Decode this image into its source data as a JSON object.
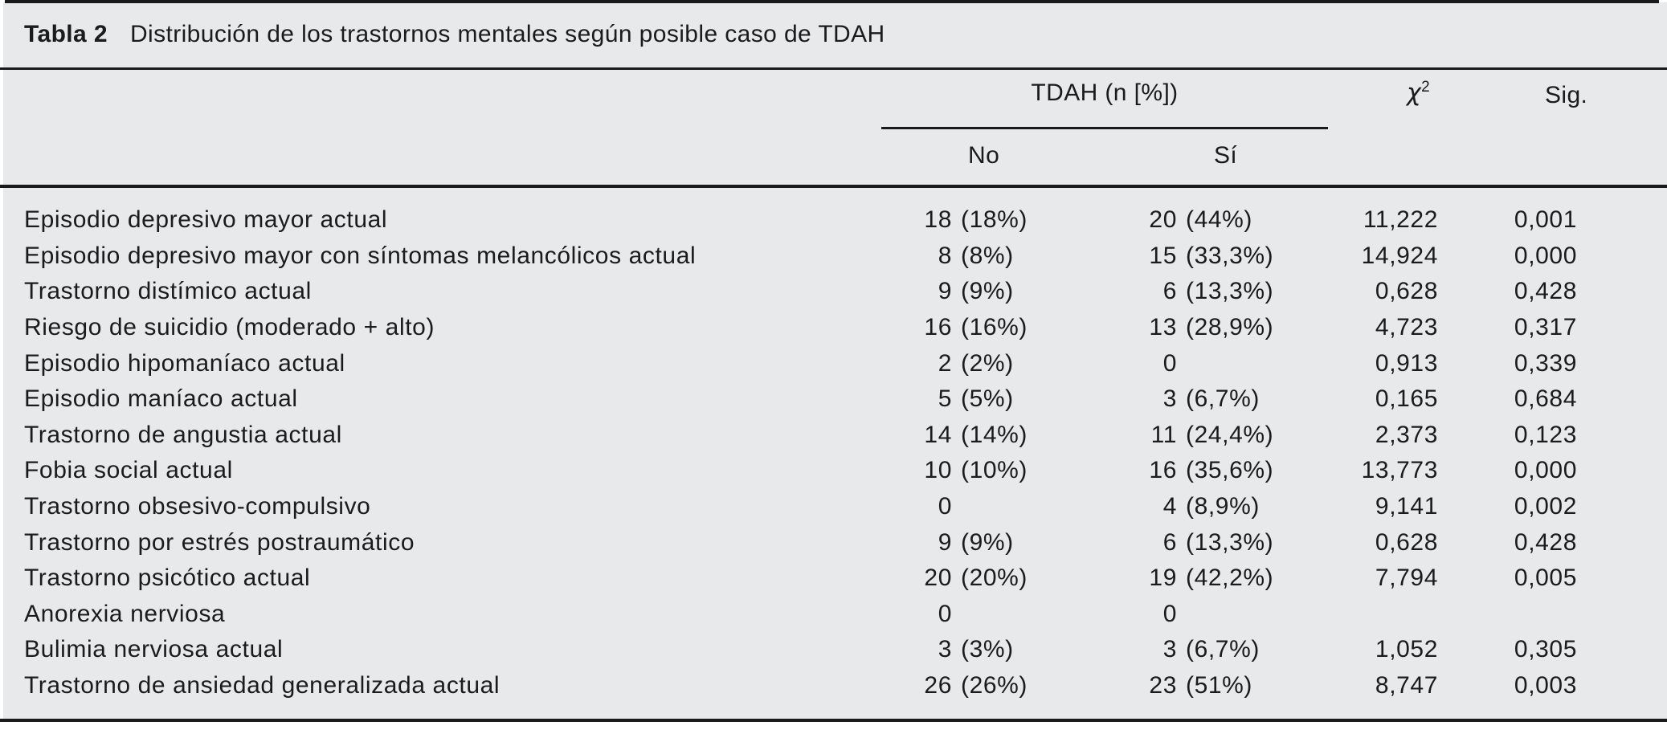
{
  "title": {
    "label": "Tabla 2",
    "text": "Distribución de los trastornos mentales según posible caso de TDAH"
  },
  "header": {
    "tdah_span": "TDAH (n [%])",
    "no": "No",
    "si": "Sí",
    "chi2_base": "χ",
    "chi2_sup": "2",
    "sig": "Sig."
  },
  "colors": {
    "panel_bg": "#e8e9ea",
    "rule": "#1a1a1a",
    "text": "#1b1b1b"
  },
  "table": {
    "rows": [
      {
        "label": "Episodio depresivo mayor actual",
        "no_n": "18",
        "no_pct": "(18%)",
        "si_n": "20",
        "si_pct": "(44%)",
        "chi2": "11,222",
        "sig": "0,001"
      },
      {
        "label": "Episodio depresivo mayor con síntomas melancólicos actual",
        "no_n": "8",
        "no_pct": "(8%)",
        "si_n": "15",
        "si_pct": "(33,3%)",
        "chi2": "14,924",
        "sig": "0,000"
      },
      {
        "label": "Trastorno distímico actual",
        "no_n": "9",
        "no_pct": "(9%)",
        "si_n": "6",
        "si_pct": "(13,3%)",
        "chi2": "0,628",
        "sig": "0,428"
      },
      {
        "label": "Riesgo de suicidio (moderado + alto)",
        "no_n": "16",
        "no_pct": "(16%)",
        "si_n": "13",
        "si_pct": "(28,9%)",
        "chi2": "4,723",
        "sig": "0,317"
      },
      {
        "label": "Episodio hipomaníaco actual",
        "no_n": "2",
        "no_pct": "(2%)",
        "si_n": "0",
        "si_pct": "",
        "chi2": "0,913",
        "sig": "0,339"
      },
      {
        "label": "Episodio maníaco actual",
        "no_n": "5",
        "no_pct": "(5%)",
        "si_n": "3",
        "si_pct": "(6,7%)",
        "chi2": "0,165",
        "sig": "0,684"
      },
      {
        "label": "Trastorno de angustia actual",
        "no_n": "14",
        "no_pct": "(14%)",
        "si_n": "11",
        "si_pct": "(24,4%)",
        "chi2": "2,373",
        "sig": "0,123"
      },
      {
        "label": "Fobia social actual",
        "no_n": "10",
        "no_pct": "(10%)",
        "si_n": "16",
        "si_pct": "(35,6%)",
        "chi2": "13,773",
        "sig": "0,000"
      },
      {
        "label": "Trastorno obsesivo-compulsivo",
        "no_n": "0",
        "no_pct": "",
        "si_n": "4",
        "si_pct": "(8,9%)",
        "chi2": "9,141",
        "sig": "0,002"
      },
      {
        "label": "Trastorno por estrés postraumático",
        "no_n": "9",
        "no_pct": "(9%)",
        "si_n": "6",
        "si_pct": "(13,3%)",
        "chi2": "0,628",
        "sig": "0,428"
      },
      {
        "label": "Trastorno psicótico actual",
        "no_n": "20",
        "no_pct": "(20%)",
        "si_n": "19",
        "si_pct": "(42,2%)",
        "chi2": "7,794",
        "sig": "0,005"
      },
      {
        "label": "Anorexia nerviosa",
        "no_n": "0",
        "no_pct": "",
        "si_n": "0",
        "si_pct": "",
        "chi2": "",
        "sig": ""
      },
      {
        "label": "Bulimia nerviosa actual",
        "no_n": "3",
        "no_pct": "(3%)",
        "si_n": "3",
        "si_pct": "(6,7%)",
        "chi2": "1,052",
        "sig": "0,305"
      },
      {
        "label": "Trastorno de ansiedad generalizada actual",
        "no_n": "26",
        "no_pct": "(26%)",
        "si_n": "23",
        "si_pct": "(51%)",
        "chi2": "8,747",
        "sig": "0,003"
      }
    ]
  }
}
